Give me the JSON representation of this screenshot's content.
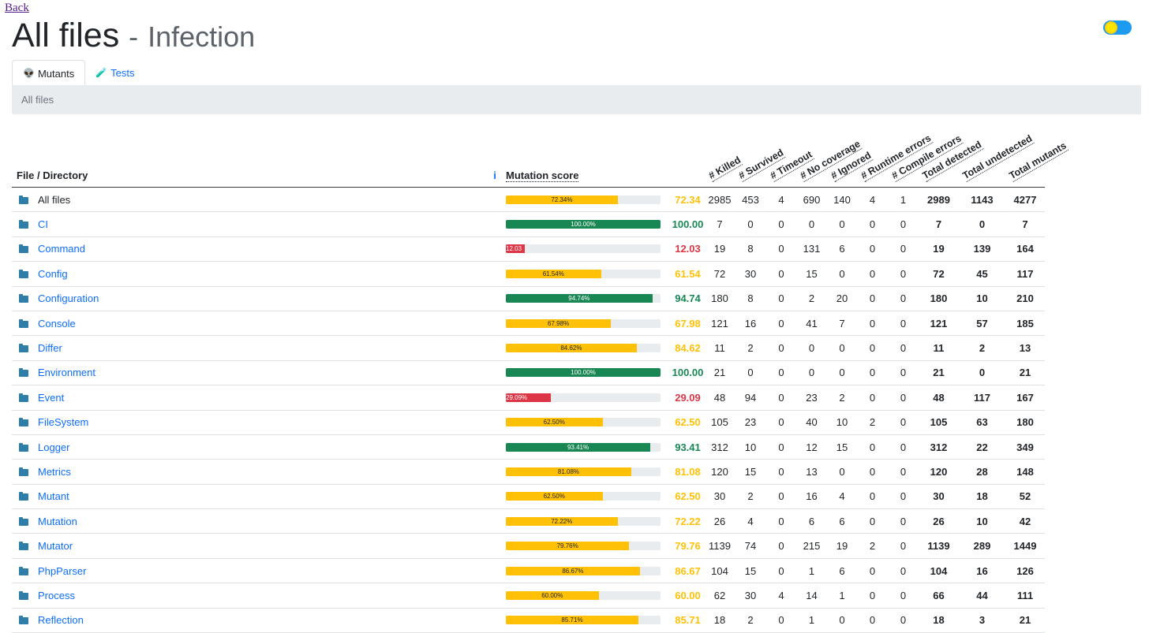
{
  "nav": {
    "back_label": "Back"
  },
  "header": {
    "title": "All files",
    "separator": "-",
    "subtitle": "Infection"
  },
  "tabs": [
    {
      "label": "Mutants",
      "icon": "alien-icon",
      "glyph": "👽",
      "active": true
    },
    {
      "label": "Tests",
      "icon": "test-tube-icon",
      "glyph": "🧪",
      "active": false
    }
  ],
  "breadcrumb": "All files",
  "colors": {
    "warn": "#ffc107",
    "ok": "#198754",
    "bad": "#dc3545",
    "link": "#0d6efd"
  },
  "table": {
    "headers": {
      "file": "File / Directory",
      "info": "i",
      "score": "Mutation score",
      "metrics": [
        "# Killed",
        "# Survived",
        "# Timeout",
        "# No coverage",
        "# Ignored",
        "# Runtime errors",
        "# Compile errors",
        "Total detected",
        "Total undetected",
        "Total mutants"
      ]
    },
    "rows": [
      {
        "name": "All files",
        "link": false,
        "bar": "72.34%",
        "score": "72.34",
        "level": "warn",
        "pct": 72.34,
        "cells": [
          "2985",
          "453",
          "4",
          "690",
          "140",
          "4",
          "1",
          "2989",
          "1143",
          "4277"
        ]
      },
      {
        "name": "CI",
        "link": true,
        "bar": "100.00%",
        "score": "100.00",
        "level": "ok",
        "pct": 100,
        "cells": [
          "7",
          "0",
          "0",
          "0",
          "0",
          "0",
          "0",
          "7",
          "0",
          "7"
        ]
      },
      {
        "name": "Command",
        "link": true,
        "bar": "12.03",
        "score": "12.03",
        "level": "bad",
        "pct": 12.03,
        "cells": [
          "19",
          "8",
          "0",
          "131",
          "6",
          "0",
          "0",
          "19",
          "139",
          "164"
        ]
      },
      {
        "name": "Config",
        "link": true,
        "bar": "61.54%",
        "score": "61.54",
        "level": "warn",
        "pct": 61.54,
        "cells": [
          "72",
          "30",
          "0",
          "15",
          "0",
          "0",
          "0",
          "72",
          "45",
          "117"
        ]
      },
      {
        "name": "Configuration",
        "link": true,
        "bar": "94.74%",
        "score": "94.74",
        "level": "ok",
        "pct": 94.74,
        "cells": [
          "180",
          "8",
          "0",
          "2",
          "20",
          "0",
          "0",
          "180",
          "10",
          "210"
        ]
      },
      {
        "name": "Console",
        "link": true,
        "bar": "67.98%",
        "score": "67.98",
        "level": "warn",
        "pct": 67.98,
        "cells": [
          "121",
          "16",
          "0",
          "41",
          "7",
          "0",
          "0",
          "121",
          "57",
          "185"
        ]
      },
      {
        "name": "Differ",
        "link": true,
        "bar": "84.62%",
        "score": "84.62",
        "level": "warn",
        "pct": 84.62,
        "cells": [
          "11",
          "2",
          "0",
          "0",
          "0",
          "0",
          "0",
          "11",
          "2",
          "13"
        ]
      },
      {
        "name": "Environment",
        "link": true,
        "bar": "100.00%",
        "score": "100.00",
        "level": "ok",
        "pct": 100,
        "cells": [
          "21",
          "0",
          "0",
          "0",
          "0",
          "0",
          "0",
          "21",
          "0",
          "21"
        ]
      },
      {
        "name": "Event",
        "link": true,
        "bar": "29.09%",
        "score": "29.09",
        "level": "bad",
        "pct": 29.09,
        "cells": [
          "48",
          "94",
          "0",
          "23",
          "2",
          "0",
          "0",
          "48",
          "117",
          "167"
        ]
      },
      {
        "name": "FileSystem",
        "link": true,
        "bar": "62.50%",
        "score": "62.50",
        "level": "warn",
        "pct": 62.5,
        "cells": [
          "105",
          "23",
          "0",
          "40",
          "10",
          "2",
          "0",
          "105",
          "63",
          "180"
        ]
      },
      {
        "name": "Logger",
        "link": true,
        "bar": "93.41%",
        "score": "93.41",
        "level": "ok",
        "pct": 93.41,
        "cells": [
          "312",
          "10",
          "0",
          "12",
          "15",
          "0",
          "0",
          "312",
          "22",
          "349"
        ]
      },
      {
        "name": "Metrics",
        "link": true,
        "bar": "81.08%",
        "score": "81.08",
        "level": "warn",
        "pct": 81.08,
        "cells": [
          "120",
          "15",
          "0",
          "13",
          "0",
          "0",
          "0",
          "120",
          "28",
          "148"
        ]
      },
      {
        "name": "Mutant",
        "link": true,
        "bar": "62.50%",
        "score": "62.50",
        "level": "warn",
        "pct": 62.5,
        "cells": [
          "30",
          "2",
          "0",
          "16",
          "4",
          "0",
          "0",
          "30",
          "18",
          "52"
        ]
      },
      {
        "name": "Mutation",
        "link": true,
        "bar": "72.22%",
        "score": "72.22",
        "level": "warn",
        "pct": 72.22,
        "cells": [
          "26",
          "4",
          "0",
          "6",
          "6",
          "0",
          "0",
          "26",
          "10",
          "42"
        ]
      },
      {
        "name": "Mutator",
        "link": true,
        "bar": "79.76%",
        "score": "79.76",
        "level": "warn",
        "pct": 79.76,
        "cells": [
          "1139",
          "74",
          "0",
          "215",
          "19",
          "2",
          "0",
          "1139",
          "289",
          "1449"
        ]
      },
      {
        "name": "PhpParser",
        "link": true,
        "bar": "86.67%",
        "score": "86.67",
        "level": "warn",
        "pct": 86.67,
        "cells": [
          "104",
          "15",
          "0",
          "1",
          "6",
          "0",
          "0",
          "104",
          "16",
          "126"
        ]
      },
      {
        "name": "Process",
        "link": true,
        "bar": "60.00%",
        "score": "60.00",
        "level": "warn",
        "pct": 60,
        "cells": [
          "62",
          "30",
          "4",
          "14",
          "1",
          "0",
          "0",
          "66",
          "44",
          "111"
        ]
      },
      {
        "name": "Reflection",
        "link": true,
        "bar": "85.71%",
        "score": "85.71",
        "level": "warn",
        "pct": 85.71,
        "cells": [
          "18",
          "2",
          "0",
          "1",
          "0",
          "0",
          "0",
          "18",
          "3",
          "21"
        ]
      }
    ]
  }
}
